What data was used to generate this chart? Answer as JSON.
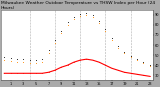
{
  "title": "Milwaukee Weather Outdoor Temperature vs THSW Index per Hour (24 Hours)",
  "title_fontsize": 3.2,
  "hours": [
    0,
    1,
    2,
    3,
    4,
    5,
    6,
    7,
    8,
    9,
    10,
    11,
    12,
    13,
    14,
    15,
    16,
    17,
    18,
    19,
    20,
    21,
    22,
    23
  ],
  "outdoor_temp": [
    32,
    32,
    32,
    32,
    32,
    32,
    32,
    33,
    35,
    38,
    40,
    43,
    45,
    46,
    45,
    43,
    40,
    37,
    35,
    33,
    32,
    31,
    30,
    29
  ],
  "thsw_index": [
    45,
    44,
    43,
    43,
    42,
    42,
    43,
    52,
    62,
    72,
    80,
    86,
    89,
    90,
    88,
    82,
    74,
    65,
    57,
    52,
    48,
    45,
    42,
    39
  ],
  "black_series": [
    48,
    47,
    46,
    46,
    45,
    45,
    46,
    55,
    65,
    74,
    83,
    88,
    91,
    92,
    90,
    84,
    76,
    67,
    59,
    53,
    49,
    46,
    43,
    40
  ],
  "outdoor_temp_color": "#ff0000",
  "thsw_color": "#ff8800",
  "black_color": "#111111",
  "background_color": "#ffffff",
  "fig_bg": "#aaaaaa",
  "grid_color": "#bbbbbb",
  "ylim": [
    25,
    95
  ],
  "xlim": [
    -0.5,
    23.5
  ],
  "xtick_step": 2,
  "xtick_start": 1,
  "yticks_right": [
    30,
    40,
    50,
    60,
    70,
    80,
    90
  ],
  "ytick_labels_right": [
    "30",
    "40",
    "50",
    "60",
    "70",
    "80",
    "90"
  ]
}
